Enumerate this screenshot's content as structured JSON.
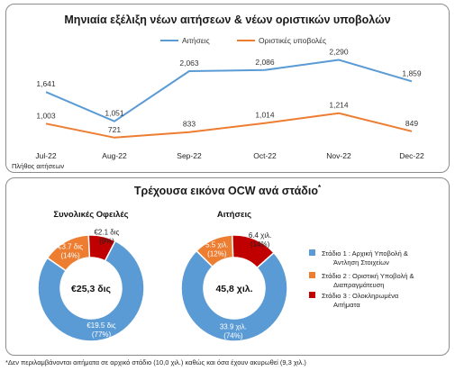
{
  "line_panel": {
    "title": "Μηνιαία εξέλιξη νέων αιτήσεων & νέων οριστικών υποβολών",
    "footer_label": "Πλήθος αιτήσεων"
  },
  "donut_panel": {
    "title": "Τρέχουσα εικόνα OCW ανά στάδιο",
    "title_sup": "*",
    "chart1_title": "Συνολικές Οφειλές",
    "chart1_center": "€25,3 δις",
    "chart2_title": "Αιτήσεις",
    "chart2_center": "45,8 χιλ.",
    "legend": [
      "Στάδιο 1 : Αρχική Υποβολή & Άντληση Στοιχείων",
      "Στάδιο 2 : Οριστική Υποβολή & Διαπραγμάτευση",
      "Στάδιο 3 : Ολοκληρωμένα Αιτήματα"
    ]
  },
  "footnote": "*Δεν περιλαμβάνονται αιτήματα σε αρχικό στάδιο (10,0 χιλ.) καθώς και όσα έχουν ακυρωθεί (9,3 χιλ.)",
  "colors": {
    "stage1": "#5b9bd5",
    "stage2": "#ed7d31",
    "stage3": "#c00000",
    "line1": "#5b9bd5",
    "line2": "#ed7d31"
  },
  "chart_data": [
    {
      "type": "line",
      "categories": [
        "Jul-22",
        "Aug-22",
        "Sep-22",
        "Oct-22",
        "Nov-22",
        "Dec-22"
      ],
      "series": [
        {
          "name": "Αιτήσεις",
          "values": [
            1641,
            1051,
            2063,
            2086,
            2290,
            1859
          ],
          "labels": [
            "1,641",
            "1,051",
            "2,063",
            "2,086",
            "2,290",
            "1,859"
          ]
        },
        {
          "name": "Οριστικές υποβολές",
          "values": [
            1003,
            721,
            833,
            1014,
            1214,
            849
          ],
          "labels": [
            "1,003",
            "721",
            "833",
            "1,014",
            "1,214",
            "849"
          ]
        }
      ],
      "ylim": [
        500,
        2500
      ],
      "legend": "top",
      "grid": false
    },
    {
      "type": "pie",
      "title": "Συνολικές Οφειλές",
      "center_label": "€25,3 δις",
      "slices": [
        {
          "stage": 1,
          "value": 19.5,
          "percent": 77,
          "label": "€19.5 δις",
          "pct_label": "(77%)"
        },
        {
          "stage": 2,
          "value": 3.7,
          "percent": 14,
          "label": "€3.7 δις",
          "pct_label": "(14%)"
        },
        {
          "stage": 3,
          "value": 2.1,
          "percent": 9,
          "label": "€2.1 δις",
          "pct_label": "(9%)"
        }
      ]
    },
    {
      "type": "pie",
      "title": "Αιτήσεις",
      "center_label": "45,8 χιλ.",
      "slices": [
        {
          "stage": 1,
          "value": 33.9,
          "percent": 74,
          "label": "33.9 χιλ.",
          "pct_label": "(74%)"
        },
        {
          "stage": 2,
          "value": 5.5,
          "percent": 12,
          "label": "5.5 χιλ.",
          "pct_label": "(12%)"
        },
        {
          "stage": 3,
          "value": 6.4,
          "percent": 14,
          "label": "6.4 χιλ.",
          "pct_label": "(14%)"
        }
      ]
    }
  ]
}
